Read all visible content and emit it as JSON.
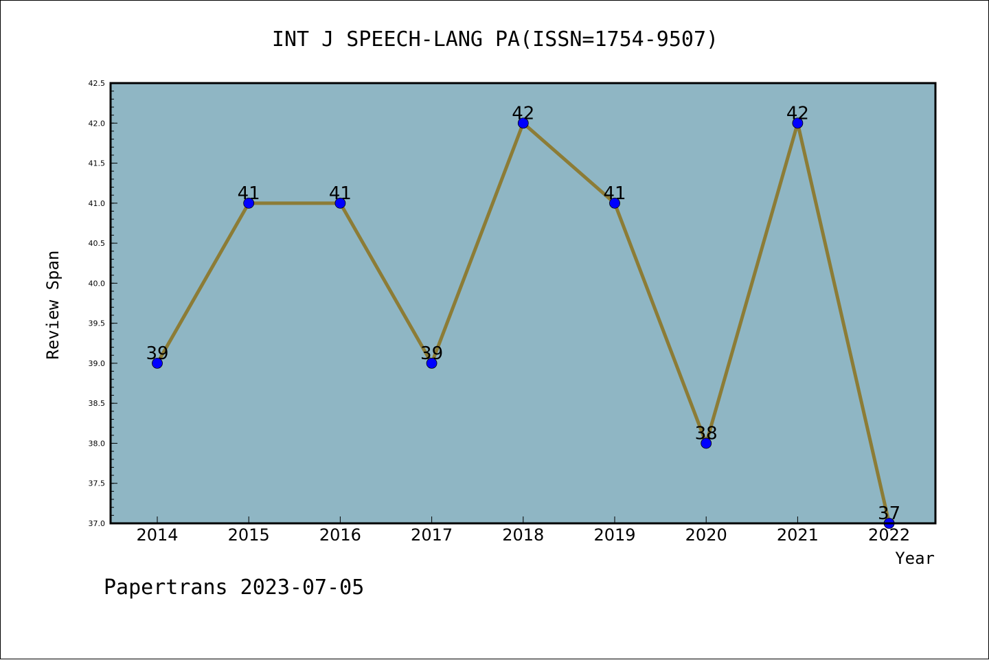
{
  "chart_data": {
    "type": "line",
    "title": "INT J SPEECH-LANG PA(ISSN=1754-9507)",
    "xlabel": "Year",
    "ylabel": "Review Span",
    "categories": [
      "2014",
      "2015",
      "2016",
      "2017",
      "2018",
      "2019",
      "2020",
      "2021",
      "2022"
    ],
    "series": [
      {
        "values": [
          39,
          41,
          41,
          39,
          42,
          41,
          38,
          42,
          37
        ]
      }
    ],
    "ylim": [
      37.0,
      42.5
    ],
    "yticks": [
      "37.0",
      "37.5",
      "38.0",
      "38.5",
      "39.0",
      "39.5",
      "40.0",
      "40.5",
      "41.0",
      "41.5",
      "42.0",
      "42.5"
    ],
    "data_labels": [
      "39",
      "41",
      "41",
      "39",
      "42",
      "41",
      "38",
      "42",
      "37"
    ],
    "grid": false,
    "colors": {
      "plot_background": "#8fb6c4",
      "line": "#8c7c36",
      "marker": "#0000ff"
    }
  },
  "footer": "Papertrans 2023-07-05"
}
